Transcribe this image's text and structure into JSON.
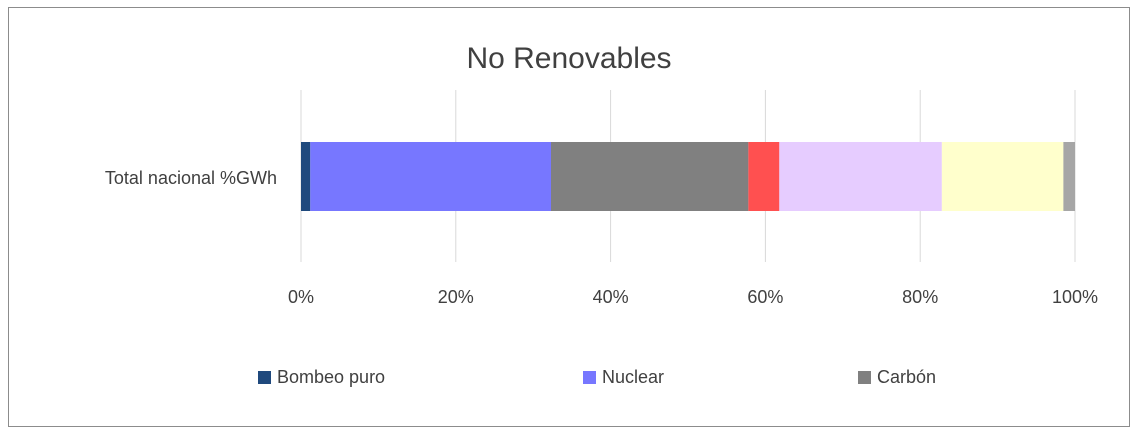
{
  "chart_data": {
    "type": "bar",
    "orientation": "horizontal",
    "stacked": "100%",
    "title": "No Renovables",
    "categories": [
      "Total  nacional %GWh"
    ],
    "xlim": [
      0,
      100
    ],
    "x_ticks": [
      "0%",
      "20%",
      "40%",
      "60%",
      "80%",
      "100%"
    ],
    "x_tick_values": [
      0,
      20,
      40,
      60,
      80,
      100
    ],
    "grid": "vertical",
    "legend_position": "bottom",
    "series": [
      {
        "name": "Bombeo puro",
        "values": [
          1.2
        ],
        "color": "#1f497d"
      },
      {
        "name": "Nuclear",
        "values": [
          31.1
        ],
        "color": "#7777ff"
      },
      {
        "name": "Carbón",
        "values": [
          25.5
        ],
        "color": "#808080"
      },
      {
        "values": [
          4.0
        ],
        "color": "#ff5050"
      },
      {
        "values": [
          21.0
        ],
        "color": "#e6ccff"
      },
      {
        "values": [
          15.7
        ],
        "color": "#ffffcc"
      },
      {
        "values": [
          1.5
        ],
        "color": "#a6a6a6"
      }
    ]
  }
}
